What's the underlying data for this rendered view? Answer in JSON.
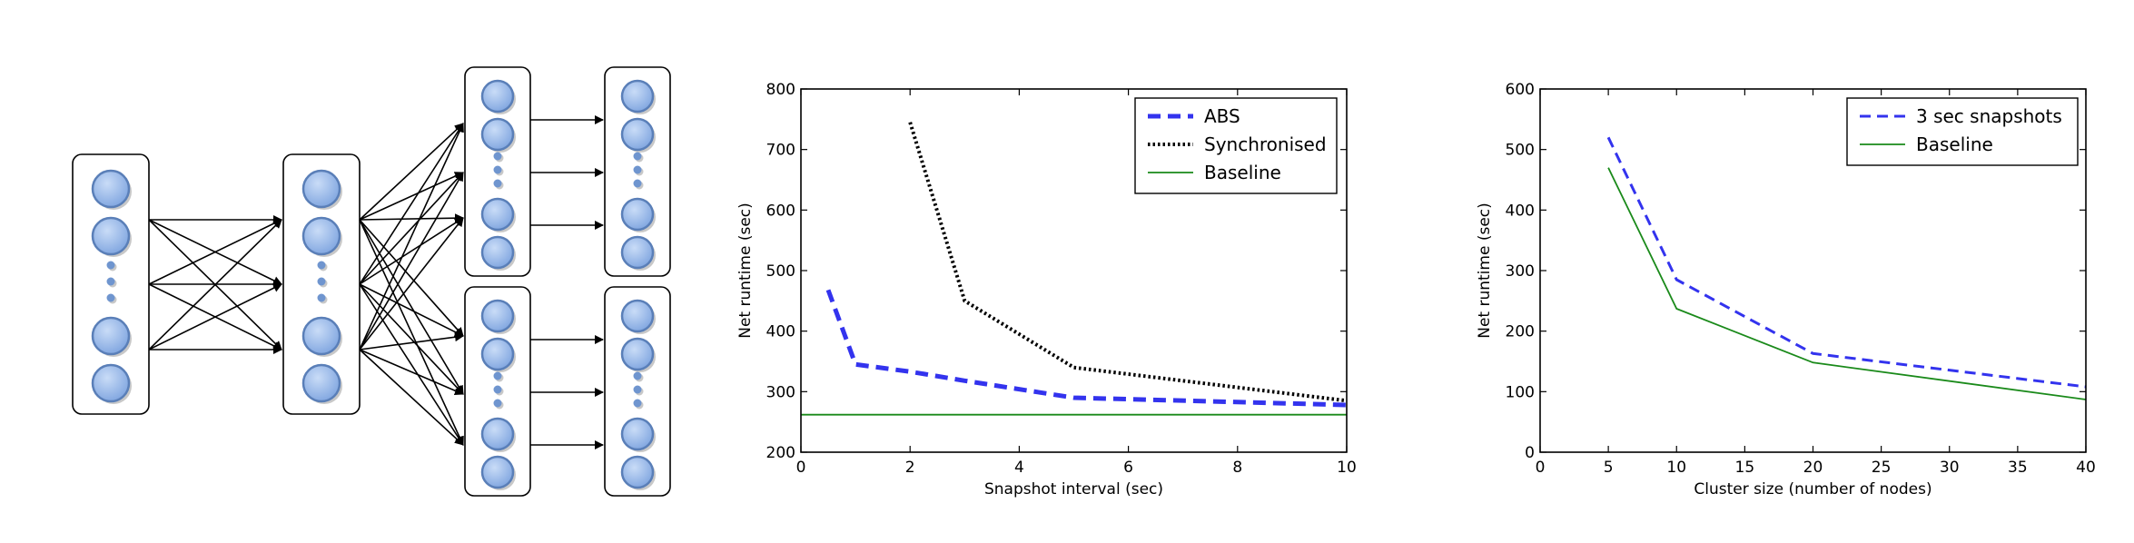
{
  "colors": {
    "abs": "#3333ee",
    "synchronised": "#000000",
    "baseline": "#1a8a1a",
    "node_fill": "#8fb3e8",
    "node_stroke": "#5a7fb8",
    "node_shadow": "#c8c8c8"
  },
  "diagram": {
    "description_icon": "dataflow-graph",
    "layers": [
      {
        "nodes": 4,
        "has_ellipsis": true
      },
      {
        "nodes": 4,
        "has_ellipsis": true
      },
      {
        "nodes": 4,
        "has_ellipsis": true
      },
      {
        "nodes": 4,
        "has_ellipsis": true
      },
      {
        "nodes": 4,
        "has_ellipsis": true
      },
      {
        "nodes": 4,
        "has_ellipsis": true
      }
    ]
  },
  "chart_data": [
    {
      "type": "line",
      "xlabel": "Snapshot interval (sec)",
      "ylabel": "Net runtime (sec)",
      "xlim": [
        0,
        10
      ],
      "ylim": [
        200,
        800
      ],
      "xticks": [
        0,
        2,
        4,
        6,
        8,
        10
      ],
      "yticks": [
        200,
        300,
        400,
        500,
        600,
        700,
        800
      ],
      "legend_position": "top-right",
      "grid": false,
      "series": [
        {
          "name": "ABS",
          "style": "dashed-thick",
          "color": "#3333ee",
          "x": [
            0.5,
            1,
            2,
            3,
            5,
            10
          ],
          "y": [
            468,
            345,
            333,
            318,
            290,
            278
          ]
        },
        {
          "name": "Synchronised",
          "style": "dotted",
          "color": "#000000",
          "x": [
            2,
            3,
            5,
            10
          ],
          "y": [
            745,
            450,
            340,
            285
          ]
        },
        {
          "name": "Baseline",
          "style": "solid",
          "color": "#1a8a1a",
          "x": [
            0,
            10
          ],
          "y": [
            262,
            262
          ]
        }
      ]
    },
    {
      "type": "line",
      "xlabel": "Cluster size (number of nodes)",
      "ylabel": "Net runtime (sec)",
      "xlim": [
        0,
        40
      ],
      "ylim": [
        0,
        600
      ],
      "xticks": [
        0,
        5,
        10,
        15,
        20,
        25,
        30,
        35,
        40
      ],
      "yticks": [
        0,
        100,
        200,
        300,
        400,
        500,
        600
      ],
      "legend_position": "top-right",
      "grid": false,
      "series": [
        {
          "name": "3 sec snapshots",
          "style": "dashed",
          "color": "#3333ee",
          "x": [
            5,
            10,
            20,
            40
          ],
          "y": [
            520,
            285,
            163,
            108
          ]
        },
        {
          "name": "Baseline",
          "style": "solid",
          "color": "#1a8a1a",
          "x": [
            5,
            10,
            20,
            40
          ],
          "y": [
            470,
            237,
            148,
            87
          ]
        }
      ]
    }
  ]
}
